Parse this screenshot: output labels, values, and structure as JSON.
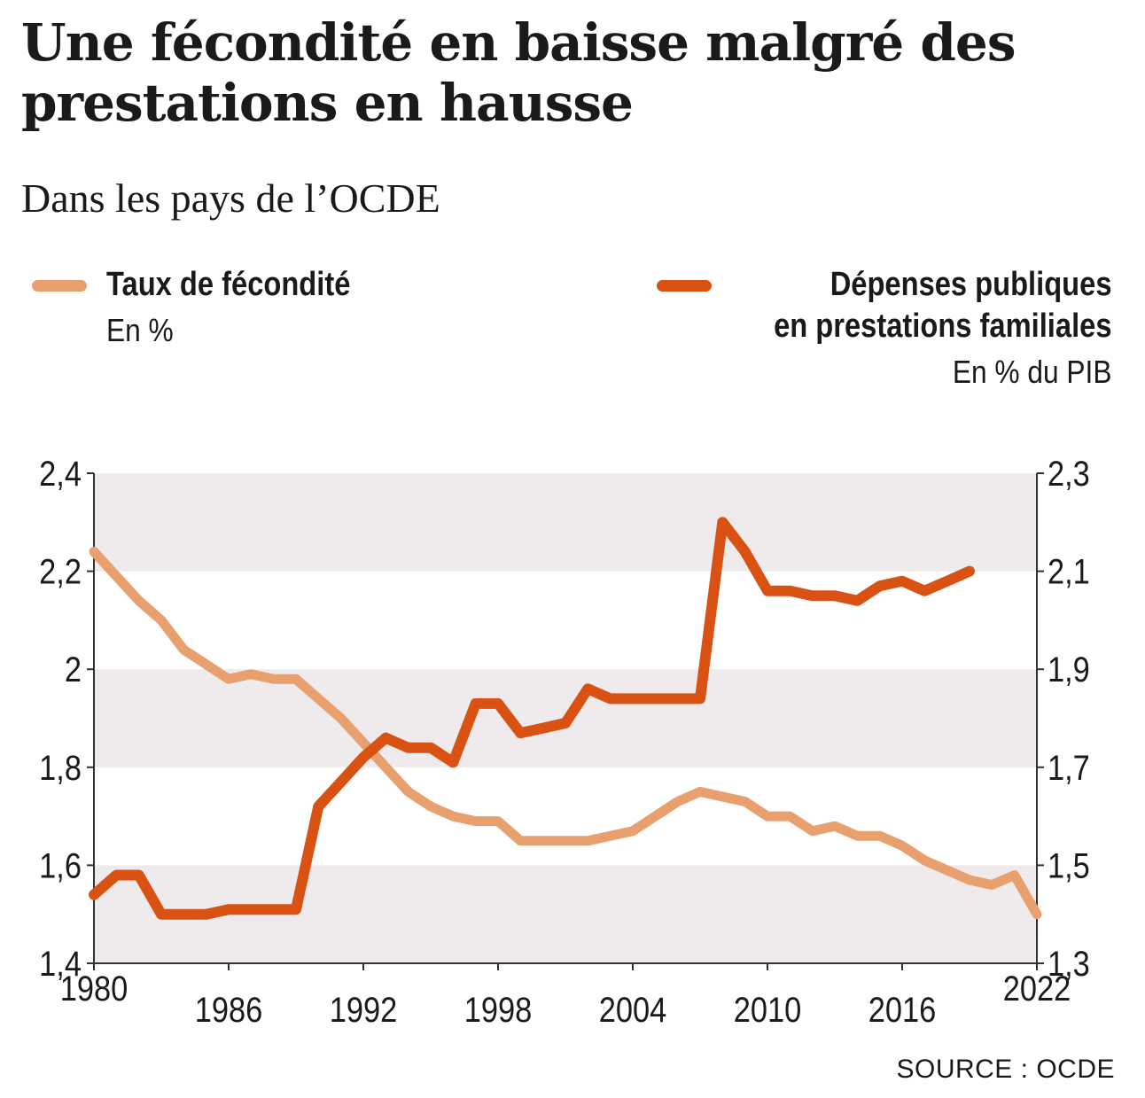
{
  "chart_data": {
    "type": "line",
    "title": "Une fécondité en baisse malgré des prestations en hausse",
    "subtitle": "Dans les pays de l’OCDE",
    "x_range": [
      1980,
      2022
    ],
    "x_ticks": [
      "1980",
      "1986",
      "1992",
      "1998",
      "2004",
      "2010",
      "2016",
      "2022"
    ],
    "y_left": {
      "range": [
        1.4,
        2.4
      ],
      "ticks": [
        "1,4",
        "1,6",
        "1,8",
        "2",
        "2,2",
        "2,4"
      ]
    },
    "y_right": {
      "range": [
        1.3,
        2.3
      ],
      "ticks": [
        "1,3",
        "1,5",
        "1,7",
        "1,9",
        "2,1",
        "2,3"
      ]
    },
    "grid": "alternating horizontal bands",
    "legend_placement": "top",
    "series": [
      {
        "name": "Taux de fécondité",
        "unit": "En %",
        "axis": "left",
        "color": "#e9a06f",
        "x": [
          1980,
          1981,
          1982,
          1983,
          1984,
          1985,
          1986,
          1987,
          1988,
          1989,
          1990,
          1991,
          1992,
          1993,
          1994,
          1995,
          1996,
          1997,
          1998,
          1999,
          2000,
          2001,
          2002,
          2003,
          2004,
          2005,
          2006,
          2007,
          2008,
          2009,
          2010,
          2011,
          2012,
          2013,
          2014,
          2015,
          2016,
          2017,
          2018,
          2019,
          2020,
          2021,
          2022
        ],
        "values": [
          2.24,
          2.19,
          2.14,
          2.1,
          2.04,
          2.01,
          1.98,
          1.99,
          1.98,
          1.98,
          1.94,
          1.9,
          1.85,
          1.8,
          1.75,
          1.72,
          1.7,
          1.69,
          1.69,
          1.65,
          1.65,
          1.65,
          1.65,
          1.66,
          1.67,
          1.7,
          1.73,
          1.75,
          1.74,
          1.73,
          1.7,
          1.7,
          1.67,
          1.68,
          1.66,
          1.66,
          1.64,
          1.61,
          1.59,
          1.57,
          1.56,
          1.58,
          1.5
        ]
      },
      {
        "name": "Dépenses publiques en prestations familiales",
        "unit": "En % du PIB",
        "axis": "right",
        "color": "#d95214",
        "x": [
          1980,
          1981,
          1982,
          1983,
          1984,
          1985,
          1986,
          1987,
          1988,
          1989,
          1990,
          1991,
          1992,
          1993,
          1994,
          1995,
          1996,
          1997,
          1998,
          1999,
          2000,
          2001,
          2002,
          2003,
          2004,
          2005,
          2006,
          2007,
          2008,
          2009,
          2010,
          2011,
          2012,
          2013,
          2014,
          2015,
          2016,
          2017,
          2018,
          2019
        ],
        "values": [
          1.44,
          1.48,
          1.48,
          1.4,
          1.4,
          1.4,
          1.41,
          1.41,
          1.41,
          1.41,
          1.62,
          1.67,
          1.72,
          1.76,
          1.74,
          1.74,
          1.71,
          1.83,
          1.83,
          1.77,
          1.78,
          1.79,
          1.86,
          1.84,
          1.84,
          1.84,
          1.84,
          1.84,
          2.2,
          2.14,
          2.06,
          2.06,
          2.05,
          2.05,
          2.04,
          2.07,
          2.08,
          2.06,
          2.08,
          2.1
        ]
      }
    ]
  },
  "legend": {
    "left": {
      "name": "Taux de fécondité",
      "unit": "En %"
    },
    "right": {
      "name_line1": "Dépenses publiques",
      "name_line2": "en prestations familiales",
      "unit": "En % du PIB"
    }
  },
  "source": "SOURCE : OCDE",
  "colors": {
    "band": "#efeaec",
    "axis": "#333333",
    "text": "#1a1a1a"
  }
}
